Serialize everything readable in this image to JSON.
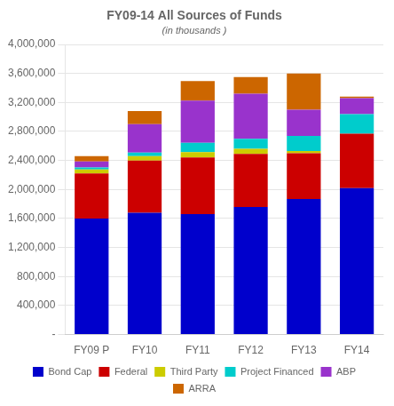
{
  "chart_data": {
    "type": "bar",
    "stacked": true,
    "title": "FY09-14 All Sources of Funds",
    "subtitle": "(in thousands )",
    "categories": [
      "FY09 P",
      "FY10",
      "FY11",
      "FY12",
      "FY13",
      "FY14"
    ],
    "series": [
      {
        "name": "Bond Cap",
        "color": "#0000CC",
        "values": [
          1600000,
          1680000,
          1660000,
          1760000,
          1870000,
          2020000
        ]
      },
      {
        "name": "Federal",
        "color": "#CC0000",
        "values": [
          620000,
          720000,
          780000,
          730000,
          630000,
          750000
        ]
      },
      {
        "name": "Third Party",
        "color": "#CCCC00",
        "values": [
          55000,
          60000,
          75000,
          70000,
          30000,
          0
        ]
      },
      {
        "name": "Project Financed",
        "color": "#00CCCC",
        "values": [
          30000,
          50000,
          130000,
          140000,
          210000,
          270000
        ]
      },
      {
        "name": "ABP",
        "color": "#9933CC",
        "values": [
          80000,
          390000,
          580000,
          620000,
          360000,
          220000
        ]
      },
      {
        "name": "ARRA",
        "color": "#CC6600",
        "values": [
          75000,
          180000,
          270000,
          230000,
          500000,
          20000
        ]
      }
    ],
    "ylim": [
      0,
      4000000
    ],
    "yticks": [
      {
        "value": 0,
        "label": "-"
      },
      {
        "value": 400000,
        "label": "400,000"
      },
      {
        "value": 800000,
        "label": "800,000"
      },
      {
        "value": 1200000,
        "label": "1,200,000"
      },
      {
        "value": 1600000,
        "label": "1,600,000"
      },
      {
        "value": 2000000,
        "label": "2,000,000"
      },
      {
        "value": 2400000,
        "label": "2,400,000"
      },
      {
        "value": 2800000,
        "label": "2,800,000"
      },
      {
        "value": 3200000,
        "label": "3,200,000"
      },
      {
        "value": 3600000,
        "label": "3,600,000"
      },
      {
        "value": 4000000,
        "label": "4,000,000"
      }
    ],
    "grid": true,
    "legend": "bottom"
  }
}
